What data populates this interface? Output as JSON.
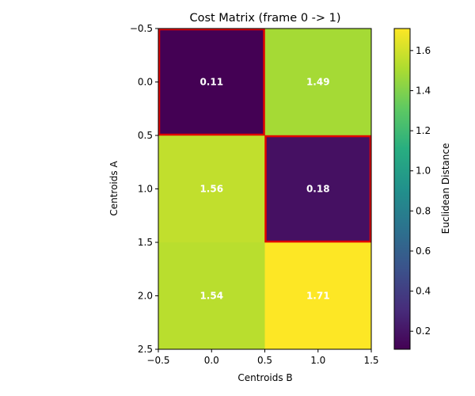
{
  "chart_data": {
    "type": "heatmap",
    "title": "Cost Matrix (frame 0 -> 1)",
    "xlabel": "Centroids B",
    "ylabel": "Centroids A",
    "x_ticks": [
      "−0.5",
      "0.0",
      "0.5",
      "1.0",
      "1.5"
    ],
    "y_ticks": [
      "−0.5",
      "0.0",
      "0.5",
      "1.0",
      "1.5",
      "2.0",
      "2.5"
    ],
    "x_tick_values": [
      -0.5,
      0.0,
      0.5,
      1.0,
      1.5
    ],
    "y_tick_values": [
      -0.5,
      0.0,
      0.5,
      1.0,
      1.5,
      2.0,
      2.5
    ],
    "xlim": [
      -0.5,
      1.5
    ],
    "ylim": [
      2.5,
      -0.5
    ],
    "rows": 3,
    "cols": 2,
    "values": [
      [
        0.11,
        1.49
      ],
      [
        1.56,
        0.18
      ],
      [
        1.54,
        1.71
      ]
    ],
    "cell_labels": [
      [
        "0.11",
        "1.49"
      ],
      [
        "1.56",
        "0.18"
      ],
      [
        "1.54",
        "1.71"
      ]
    ],
    "highlighted_cells": [
      [
        0,
        0
      ],
      [
        1,
        1
      ]
    ],
    "highlight_color": "#e00000",
    "colormap": "viridis",
    "colorbar": {
      "label": "Euclidean Distance",
      "min": 0.11,
      "max": 1.71,
      "ticks": [
        0.2,
        0.4,
        0.6,
        0.8,
        1.0,
        1.2,
        1.4,
        1.6
      ],
      "tick_labels": [
        "0.2",
        "0.4",
        "0.6",
        "0.8",
        "1.0",
        "1.2",
        "1.4",
        "1.6"
      ]
    }
  }
}
